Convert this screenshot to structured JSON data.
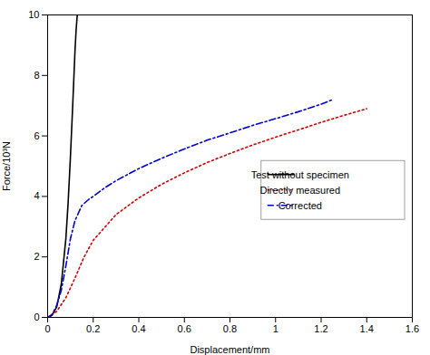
{
  "chart_data": {
    "type": "line",
    "xlabel": "Displacement/mm",
    "ylabel": "Force/10³N",
    "xlim": [
      0,
      1.6
    ],
    "ylim": [
      0,
      10
    ],
    "xticks": [
      0,
      0.2,
      0.4,
      0.6,
      0.8,
      1.0,
      1.2,
      1.4,
      1.6
    ],
    "yticks": [
      0,
      2,
      4,
      6,
      8,
      10
    ],
    "grid": false,
    "legend": "right",
    "series": [
      {
        "name": "Test without specimen",
        "color": "#000000",
        "line_style": "solid",
        "x": [
          0.0,
          0.01,
          0.02,
          0.04,
          0.06,
          0.08,
          0.09,
          0.1,
          0.11,
          0.12,
          0.125,
          0.13
        ],
        "values": [
          0.0,
          0.02,
          0.08,
          0.35,
          1.1,
          2.6,
          3.8,
          5.3,
          7.0,
          8.8,
          9.5,
          10.0
        ]
      },
      {
        "name": "Directly measured",
        "color": "#cc0000",
        "line_style": "dotted",
        "x": [
          0.0,
          0.04,
          0.08,
          0.12,
          0.16,
          0.2,
          0.3,
          0.4,
          0.5,
          0.6,
          0.7,
          0.8,
          0.9,
          1.0,
          1.1,
          1.2,
          1.3,
          1.4
        ],
        "values": [
          0.0,
          0.2,
          0.65,
          1.3,
          2.0,
          2.55,
          3.4,
          3.95,
          4.4,
          4.78,
          5.12,
          5.42,
          5.7,
          5.96,
          6.2,
          6.45,
          6.68,
          6.9
        ]
      },
      {
        "name": "Corrected",
        "color": "#0000cc",
        "line_style": "dashdot",
        "x": [
          0.0,
          0.02,
          0.04,
          0.06,
          0.08,
          0.1,
          0.12,
          0.15,
          0.18,
          0.2,
          0.25,
          0.3,
          0.4,
          0.5,
          0.6,
          0.7,
          0.8,
          0.9,
          1.0,
          1.1,
          1.2,
          1.25
        ],
        "values": [
          0.0,
          0.1,
          0.4,
          0.9,
          1.7,
          2.6,
          3.2,
          3.7,
          3.9,
          4.0,
          4.28,
          4.52,
          4.92,
          5.26,
          5.57,
          5.86,
          6.1,
          6.35,
          6.57,
          6.8,
          7.05,
          7.2
        ]
      }
    ]
  }
}
